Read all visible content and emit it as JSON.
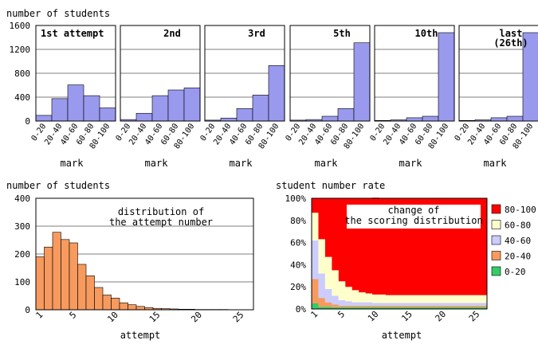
{
  "chart_data": [
    {
      "type": "bar",
      "ylabel": "number of students",
      "xlabel": "mark",
      "categories": [
        "0-20",
        "20-40",
        "40-60",
        "60-80",
        "80-100"
      ],
      "ylim": [
        0,
        1600
      ],
      "yticks": [
        "0",
        "400",
        "800",
        "1200",
        "1600"
      ],
      "bar_color": "#9999ee",
      "panels": [
        {
          "title": "1st attempt",
          "values": [
            95,
            375,
            605,
            425,
            220
          ]
        },
        {
          "title": "2nd",
          "values": [
            25,
            130,
            425,
            520,
            555
          ]
        },
        {
          "title": "3rd",
          "values": [
            15,
            50,
            210,
            435,
            930
          ]
        },
        {
          "title": "5th",
          "values": [
            15,
            25,
            80,
            210,
            1310
          ]
        },
        {
          "title": "10th",
          "values": [
            10,
            20,
            55,
            80,
            1480
          ]
        },
        {
          "title": "last\n(26th)",
          "values": [
            10,
            20,
            55,
            80,
            1480
          ]
        }
      ]
    },
    {
      "type": "bar",
      "title": "distribution of\nthe attempt number",
      "ylabel": "number of students",
      "xlabel": "attempt",
      "ylim": [
        0,
        400
      ],
      "yticks": [
        "0",
        "100",
        "200",
        "300",
        "400"
      ],
      "xticks": [
        "1",
        "5",
        "10",
        "15",
        "20",
        "25"
      ],
      "bar_color": "#f79a5e",
      "x": [
        1,
        2,
        3,
        4,
        5,
        6,
        7,
        8,
        9,
        10,
        11,
        12,
        13,
        14,
        15,
        16,
        17,
        18,
        19,
        20,
        21,
        22,
        23,
        24,
        25,
        26
      ],
      "values": [
        190,
        225,
        278,
        252,
        240,
        163,
        122,
        80,
        53,
        42,
        25,
        18,
        12,
        8,
        5,
        4,
        3,
        2,
        2,
        1,
        1,
        1,
        1,
        0,
        0,
        0
      ]
    },
    {
      "type": "area",
      "title": "change of\nthe scoring distribution",
      "ylabel": "student number rate",
      "xlabel": "attempt",
      "ylim": [
        0,
        100
      ],
      "yticks": [
        "0%",
        "20%",
        "40%",
        "60%",
        "80%",
        "100%"
      ],
      "xticks": [
        "1",
        "5",
        "10",
        "15",
        "20",
        "25"
      ],
      "x": [
        1,
        2,
        3,
        4,
        5,
        6,
        7,
        8,
        9,
        10,
        11,
        12,
        13,
        14,
        15,
        16,
        17,
        18,
        19,
        20,
        21,
        22,
        23,
        24,
        25,
        26
      ],
      "legend": "right",
      "series": [
        {
          "name": "0-20",
          "color": "#33cc66",
          "values": [
            5,
            2,
            2,
            1.5,
            1.5,
            1.5,
            1.5,
            1.5,
            1.5,
            1.5,
            1.5,
            1.5,
            1.5,
            1.5,
            1.5,
            1.5,
            1.5,
            1.5,
            1.5,
            1.5,
            1.5,
            1.5,
            1.5,
            1.5,
            1.5,
            1.5
          ]
        },
        {
          "name": "20-40",
          "color": "#f79a5e",
          "values": [
            22,
            8,
            4,
            2.5,
            1.5,
            1.5,
            1.5,
            1.5,
            1.5,
            1.5,
            1.5,
            1.5,
            1.5,
            1.5,
            1.5,
            1.5,
            1.5,
            1.5,
            1.5,
            1.5,
            1.5,
            1.5,
            1.5,
            1.5,
            1.5,
            1.5
          ]
        },
        {
          "name": "40-60",
          "color": "#ccccff",
          "values": [
            35,
            22,
            12,
            8,
            5,
            4,
            3,
            3,
            3,
            2.5,
            2.5,
            2.5,
            2.5,
            2.5,
            2.5,
            2.5,
            2.5,
            2.5,
            2.5,
            2.5,
            2.5,
            2.5,
            2.5,
            2.5,
            2.5,
            2.5
          ]
        },
        {
          "name": "60-80",
          "color": "#ffffcc",
          "values": [
            25,
            31,
            29,
            23,
            17,
            13,
            11,
            9,
            8,
            7.5,
            7.5,
            7,
            7,
            7,
            7,
            7,
            7,
            7,
            7,
            7,
            7,
            7,
            7,
            7,
            7,
            7
          ]
        },
        {
          "name": "80-100",
          "color": "#ff0000",
          "values": [
            13,
            37,
            53,
            65,
            75,
            80,
            83,
            85,
            86,
            87.5,
            87,
            87.5,
            87.5,
            87.5,
            87.5,
            87.5,
            87.5,
            87.5,
            87.5,
            87.5,
            87.5,
            87.5,
            87.5,
            87.5,
            87.5,
            87.5
          ]
        }
      ]
    }
  ]
}
